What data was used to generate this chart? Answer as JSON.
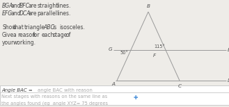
{
  "title_lines": [
    "BGA and BFC are straight lines.",
    "EFG and DCA are parallel lines.",
    "",
    "Show that triangle ABC is isosceles.",
    "Give a reason for each stage of",
    "your working."
  ],
  "angle1_label": "50°",
  "angle2_label": "115°",
  "bg_color": "#eeece8",
  "answer_box_color": "#ffffff",
  "answer_box_border": "#bbbbbb",
  "line_color": "#999999",
  "text_color": "#444444",
  "label_color": "#555555",
  "placeholder_color": "#aaaaaa",
  "answer_label_text": "Angle BAC =",
  "answer_placeholder1": "angle BAC with reason",
  "answer_placeholder2": "Next stages with reasons on the same line as",
  "answer_placeholder3": "the angles found (eg  angle XYZ= 75 degrees",
  "box1_label_italic_parts": [
    "BGA",
    "BFC",
    "EFG",
    "DCA",
    "ABC"
  ],
  "figw": 3.29,
  "figh": 1.54,
  "dpi": 100
}
